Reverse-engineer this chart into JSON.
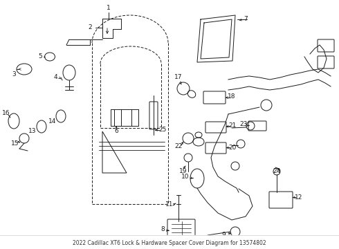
{
  "title": "2022 Cadillac XT6 Lock & Hardware Spacer Cover Diagram for 13574802",
  "bg_color": "#ffffff",
  "line_color": "#1a1a1a",
  "figsize": [
    4.9,
    3.6
  ],
  "dpi": 100
}
